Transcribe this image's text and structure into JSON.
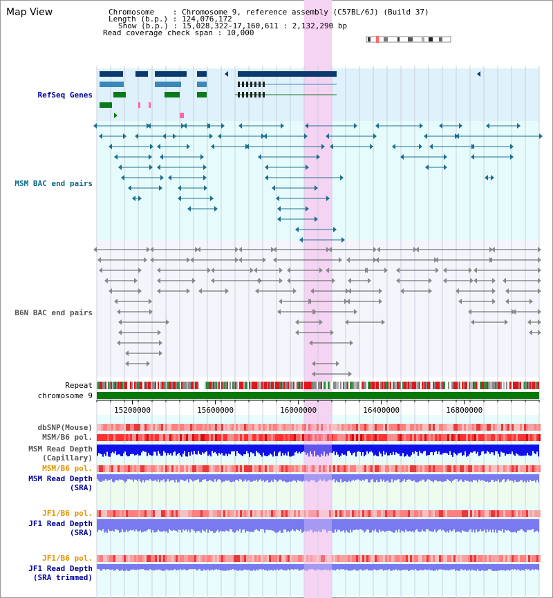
{
  "title": "Map View",
  "info": {
    "line1": "Chromosome    : Chromosome 9, reference assembly (C57BL/6J) (Build 37)",
    "line2": "Length (b.p.) : 124,076,172",
    "line3": "Show (b.p.) : 15,028,322-17,160,611 : 2,132,290 bp",
    "line4": "Read coverage check span : 10,000"
  },
  "tracks": {
    "refseq": "RefSeq Genes",
    "msm_bac": "MSM BAC end pairs",
    "b6n_bac": "B6N BAC end pairs",
    "repeat": "Repeat",
    "chromosome": "chromosome 9",
    "dbsnp": "dbSNP(Mouse)",
    "msm_b6_pol_cap": "MSM/B6 pol.",
    "msm_depth_cap_1": "MSM Read Depth",
    "msm_depth_cap_2": "(Capillary)",
    "msm_b6_pol_sra": "MSM/B6 pol.",
    "msm_depth_sra_1": "MSM Read Depth",
    "msm_depth_sra_2": "(SRA)",
    "jf1_b6_pol_sra": "JF1/B6 pol.",
    "jf1_depth_sra_1": "JF1 Read Depth",
    "jf1_depth_sra_2": "(SRA)",
    "jf1_b6_pol_trim": "JF1/B6 pol.",
    "jf1_depth_trim_1": "JF1 Read Depth",
    "jf1_depth_trim_2": "(SRA trimmed)"
  },
  "axis": {
    "ticks": [
      15200000,
      15600000,
      16000000,
      16400000,
      16800000
    ],
    "labels": [
      "15200000",
      "15600000",
      "16000000",
      "16400000",
      "16800000"
    ]
  },
  "colors": {
    "refseq_bg": "#dff1fb",
    "msm_bg": "#e6fbfb",
    "b6n_bg": "#f4f5fb",
    "highlight": "#f5d3f3",
    "msm_line": "#1e6f8f",
    "b6n_line": "#555555",
    "chrom": "#087808",
    "depth_dark": "#1010e8",
    "depth_light": "#7a7af0",
    "label_blue": "#000099",
    "label_orange": "#e39400",
    "label_teal": "#0a6a8a"
  }
}
